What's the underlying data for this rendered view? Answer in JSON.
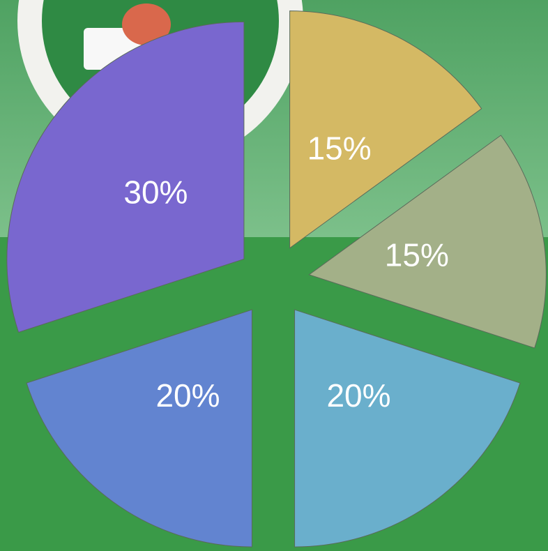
{
  "chart_data": {
    "type": "pie",
    "values": [
      15,
      15,
      20,
      20,
      30
    ],
    "value_labels": [
      "15%",
      "15%",
      "20%",
      "20%",
      "30%"
    ],
    "colors": [
      "#d4b964",
      "#a3b088",
      "#6aafcc",
      "#6284d0",
      "#7967cf"
    ]
  }
}
